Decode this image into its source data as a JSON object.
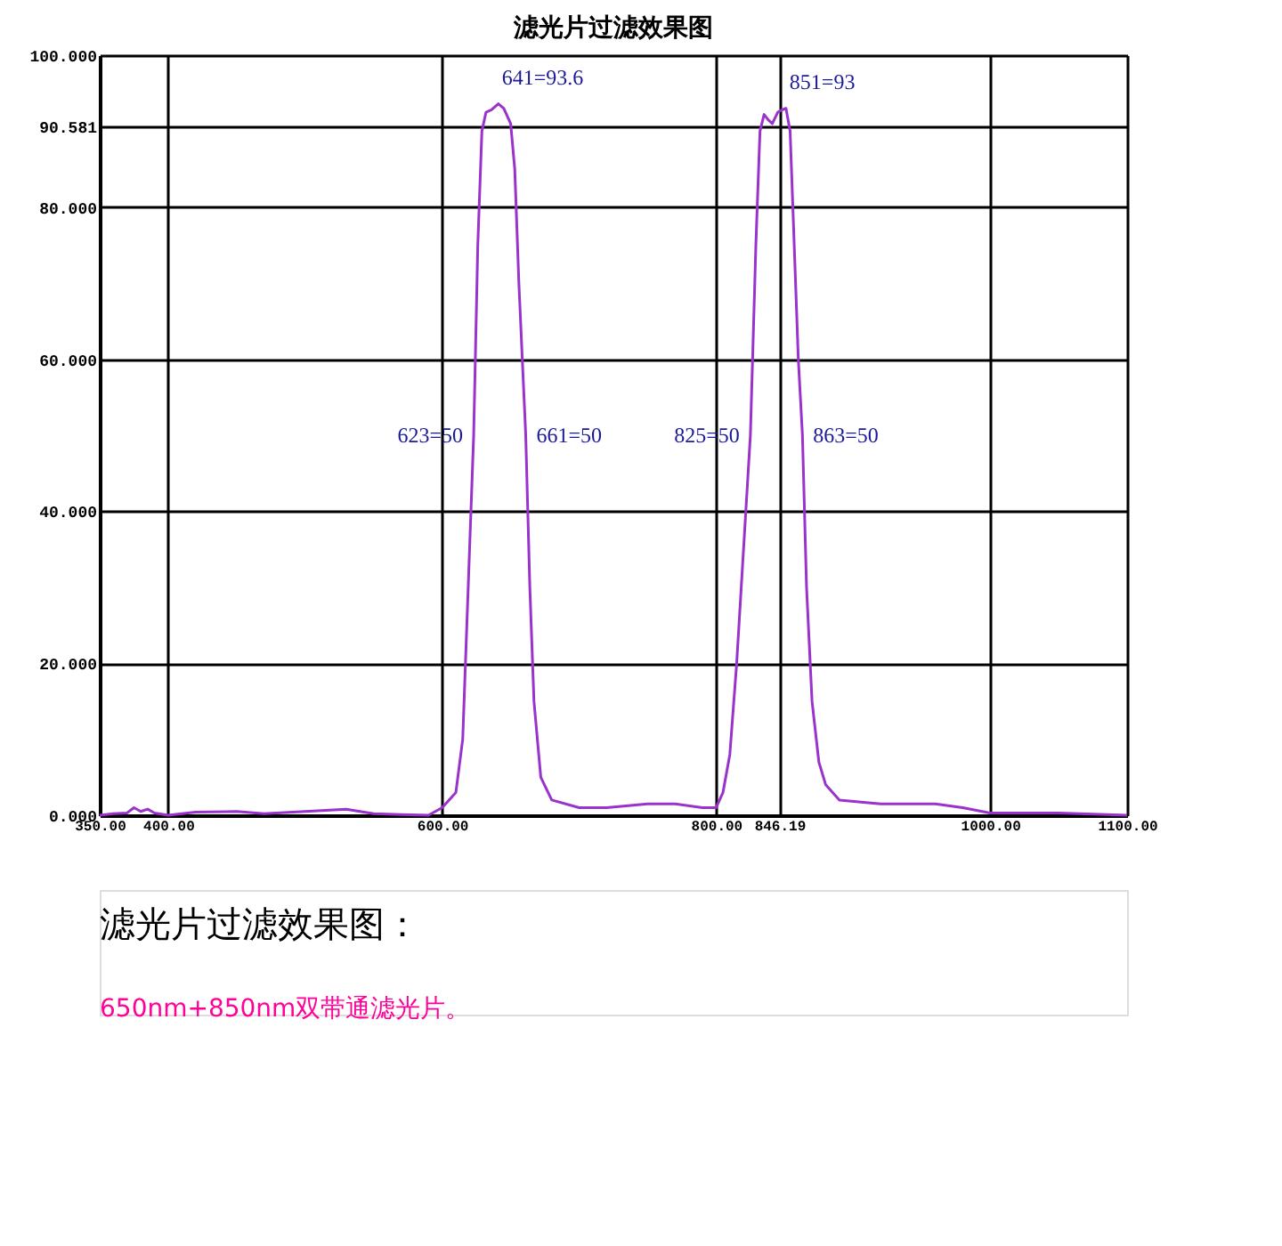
{
  "chart_data": {
    "type": "line",
    "title": "滤光片过滤效果图",
    "x": [
      350,
      360,
      370,
      375,
      380,
      385,
      390,
      400,
      420,
      450,
      470,
      500,
      530,
      550,
      570,
      590,
      600,
      610,
      615,
      620,
      623,
      626,
      629,
      632,
      636,
      641,
      645,
      650,
      653,
      656,
      661,
      664,
      667,
      672,
      680,
      700,
      720,
      750,
      770,
      790,
      800,
      805,
      810,
      815,
      820,
      825,
      829,
      832,
      835,
      838,
      841,
      845,
      848,
      851,
      854,
      857,
      860,
      863,
      866,
      870,
      875,
      880,
      890,
      920,
      960,
      980,
      1000,
      1050,
      1100
    ],
    "series": [
      {
        "color": "#9933cc",
        "values": [
          0,
          0.2,
          0.3,
          1.0,
          0.5,
          0.8,
          0.3,
          0,
          0.4,
          0.5,
          0.2,
          0.5,
          0.8,
          0.2,
          0.1,
          0,
          1,
          3,
          10,
          35,
          50,
          75,
          90,
          92.5,
          92.8,
          93.6,
          93,
          91,
          85,
          70,
          50,
          30,
          15,
          5,
          2,
          1,
          1,
          1.5,
          1.5,
          1,
          1,
          3,
          8,
          20,
          35,
          50,
          75,
          90,
          92.2,
          91.5,
          91,
          92.5,
          92.8,
          93,
          90,
          75,
          60,
          50,
          30,
          15,
          7,
          4,
          2,
          1.5,
          1.5,
          1,
          0.3,
          0.3,
          0
        ]
      }
    ],
    "xlim": [
      350,
      1100
    ],
    "xticks": [
      {
        "value": 350,
        "label": "350.00"
      },
      {
        "value": 400,
        "label": "400.00"
      },
      {
        "value": 600,
        "label": "600.00"
      },
      {
        "value": 800,
        "label": "800.00"
      },
      846.19,
      {
        "value": 1000,
        "label": "1000.00"
      },
      {
        "value": 1100,
        "label": "1100.00"
      }
    ],
    "ylim": [
      0,
      100
    ],
    "yticks": [
      {
        "value": 0,
        "label": "0.000"
      },
      {
        "value": 20,
        "label": "20.000"
      },
      {
        "value": 40,
        "label": "40.000"
      },
      {
        "value": 60,
        "label": "60.000"
      },
      {
        "value": 80,
        "label": "80.000"
      },
      90.581,
      {
        "value": 100,
        "label": "100.000"
      }
    ],
    "grid": true,
    "marker": "none",
    "line_style": "solid",
    "annotations": [
      {
        "text": "641=93.6",
        "x": 641,
        "y": 93.6
      },
      {
        "text": "851=93",
        "x": 851,
        "y": 93
      },
      {
        "text": "623=50",
        "x": 623,
        "y": 50
      },
      {
        "text": "661=50",
        "x": 661,
        "y": 50
      },
      {
        "text": "825=50",
        "x": 825,
        "y": 50
      },
      {
        "text": "863=50",
        "x": 863,
        "y": 50
      },
      "滤光片过滤效果图：",
      "650nm+850nm双带通滤光片。"
    ]
  }
}
